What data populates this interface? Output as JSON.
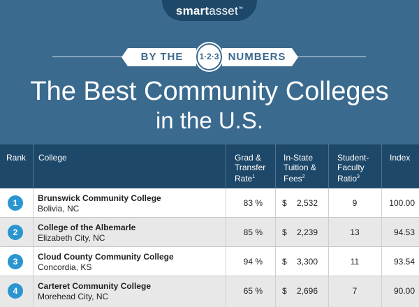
{
  "logo": {
    "brand_bold": "smart",
    "brand_rest": "asset",
    "tm": "™"
  },
  "byline": {
    "left": "BY THE",
    "badge": "1·2·3",
    "right": "NUMBERS"
  },
  "title": {
    "line1": "The Best Community Colleges",
    "line2": "in the U.S."
  },
  "columns": {
    "rank": "Rank",
    "college": "College",
    "grad_line1": "Grad &",
    "grad_line2": "Transfer",
    "grad_line3": "Rate",
    "grad_note": "1",
    "tuition_line1": "In-State",
    "tuition_line2": "Tuition &",
    "tuition_line3": "Fees",
    "tuition_note": "2",
    "ratio_line1": "Student-",
    "ratio_line2": "Faculty",
    "ratio_line3": "Ratio",
    "ratio_note": "3",
    "index": "Index"
  },
  "rows": [
    {
      "rank": "1",
      "name": "Brunswick Community College",
      "location": "Bolivia, NC",
      "grad_rate": "83 %",
      "currency": "$",
      "tuition": "2,532",
      "ratio": "9",
      "index": "100.00"
    },
    {
      "rank": "2",
      "name": "College of the Albemarle",
      "location": "Elizabeth City, NC",
      "grad_rate": "85 %",
      "currency": "$",
      "tuition": "2,239",
      "ratio": "13",
      "index": "94.53"
    },
    {
      "rank": "3",
      "name": "Cloud County Community College",
      "location": "Concordia, KS",
      "grad_rate": "94 %",
      "currency": "$",
      "tuition": "3,300",
      "ratio": "11",
      "index": "93.54"
    },
    {
      "rank": "4",
      "name": "Carteret Community College",
      "location": "Morehead City, NC",
      "grad_rate": "65 %",
      "currency": "$",
      "tuition": "2,696",
      "ratio": "7",
      "index": "90.00"
    }
  ]
}
